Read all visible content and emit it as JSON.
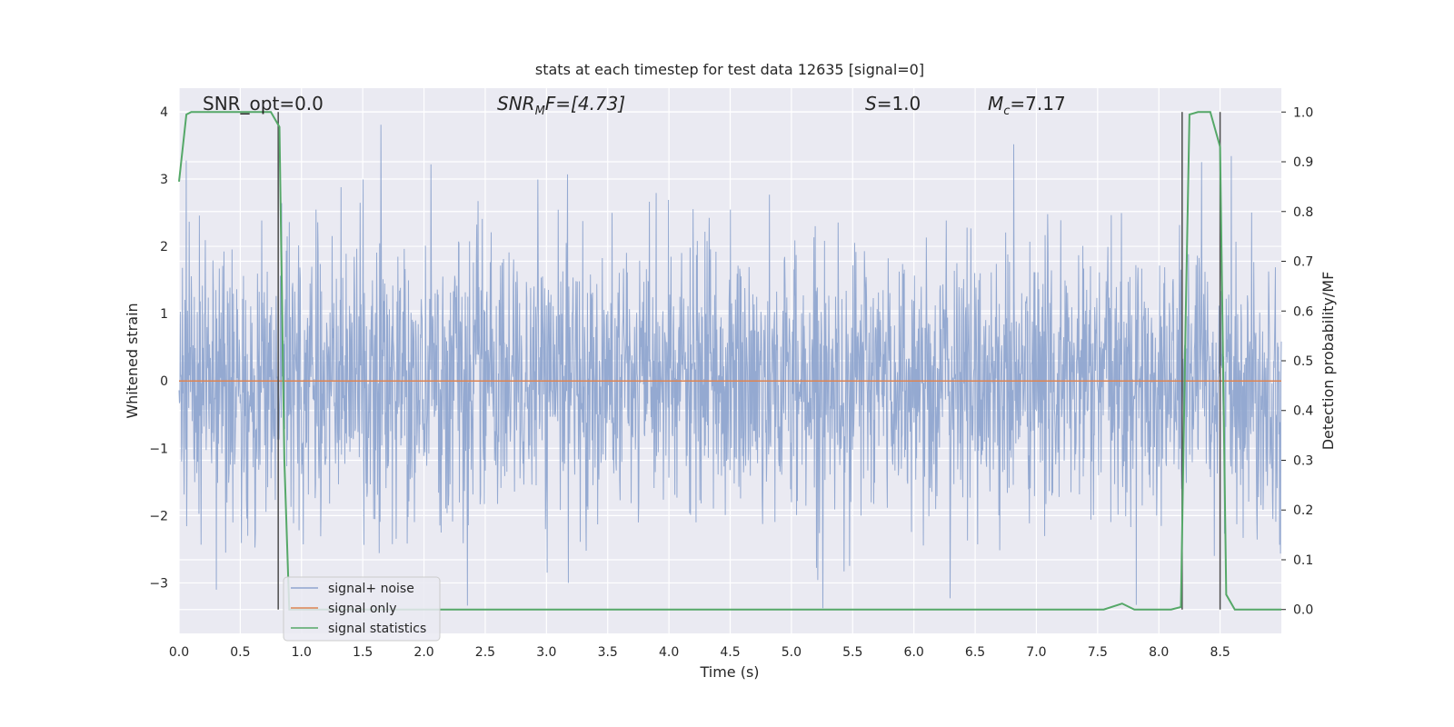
{
  "chart_data": {
    "type": "line",
    "title": "stats at each timestep for test data 12635 [signal=0]",
    "xlabel": "Time (s)",
    "ylabel": "Whitened strain",
    "y2label": "Detection probability/MF",
    "xlim": [
      0.0,
      9.0
    ],
    "ylim": [
      -3.75,
      4.35
    ],
    "y2lim": [
      -0.048,
      1.048
    ],
    "xticks": [
      "0.0",
      "0.5",
      "1.0",
      "1.5",
      "2.0",
      "2.5",
      "3.0",
      "3.5",
      "4.0",
      "4.5",
      "5.0",
      "5.5",
      "6.0",
      "6.5",
      "7.0",
      "7.5",
      "8.0",
      "8.5"
    ],
    "yticks": [
      "4",
      "3",
      "2",
      "1",
      "0",
      "−1",
      "−2",
      "−3"
    ],
    "y2ticks": [
      "1.0",
      "0.9",
      "0.8",
      "0.7",
      "0.6",
      "0.5",
      "0.4",
      "0.3",
      "0.2",
      "0.1",
      "0.0"
    ],
    "grid": true,
    "legend_position": "lower-left",
    "annotations": {
      "snr_opt": "SNR_opt=0.0",
      "snr_mf_main": "SNR",
      "snr_mf_sub": "M",
      "snr_mf_rest": "F=[4.73]",
      "s_italic": "S",
      "s_rest": "=1.0",
      "mc_main": "M",
      "mc_sub": "c",
      "mc_rest": "=7.17"
    },
    "series": [
      {
        "name": "signal+ noise",
        "color": "#8fa5cf",
        "description_stats": {
          "approx_min": -3.4,
          "approx_max": 4.0
        }
      },
      {
        "name": "signal only",
        "color": "#dd8452",
        "x": [
          0.0,
          9.0
        ],
        "y": [
          0.0,
          0.0
        ]
      },
      {
        "name": "signal statistics",
        "color": "#55a868",
        "axis": "right",
        "x": [
          0.0,
          0.06,
          0.1,
          0.2,
          0.5,
          0.75,
          0.82,
          0.86,
          0.9,
          1.0,
          7.55,
          7.7,
          7.8,
          8.1,
          8.18,
          8.22,
          8.25,
          8.32,
          8.42,
          8.5,
          8.55,
          8.62,
          9.0
        ],
        "y": [
          0.86,
          0.995,
          1.0,
          1.0,
          1.0,
          1.0,
          0.97,
          0.3,
          0.0,
          0.0,
          0.0,
          0.012,
          0.0,
          0.0,
          0.005,
          0.6,
          0.995,
          1.0,
          1.0,
          0.93,
          0.03,
          0.0,
          0.0
        ]
      }
    ],
    "vlines": [
      0.81,
      8.19,
      8.5
    ]
  },
  "colors": {
    "plot_background": "#eaeaf2",
    "grid": "#ffffff",
    "vline": "#4d4d4d"
  }
}
